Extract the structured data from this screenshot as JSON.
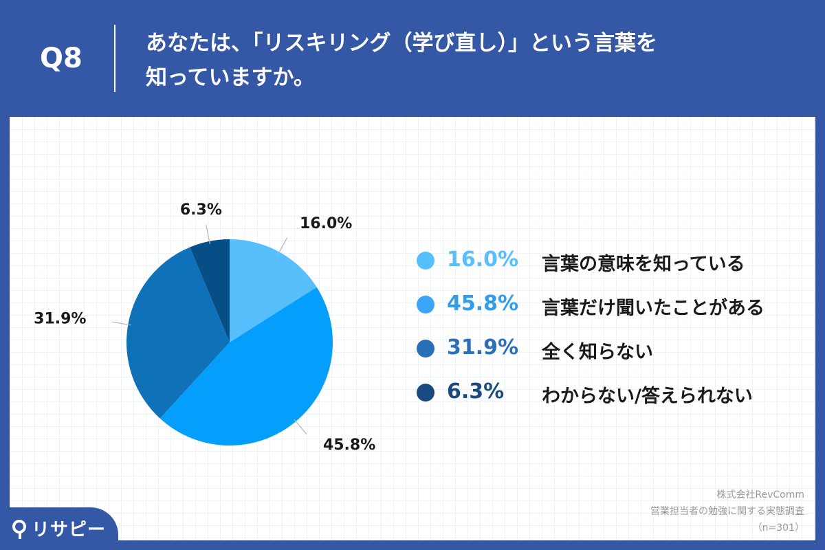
{
  "header": {
    "question_label": "Q8",
    "question_line1": "あなたは、「リスキリング（学び直し）」という言葉を",
    "question_line2": "知っていますか。"
  },
  "chart_data": {
    "type": "pie",
    "categories": [
      "言葉の意味を知っている",
      "言葉だけ聞いたことがある",
      "全く知らない",
      "わからない/答えられない"
    ],
    "values": [
      16.0,
      45.8,
      31.9,
      6.3
    ],
    "labels": [
      "16.0%",
      "45.8%",
      "31.9%",
      "6.3%"
    ],
    "colors": [
      "#56bffc",
      "#049ffc",
      "#0f72b8",
      "#064f86"
    ],
    "legend_pct_colors": [
      "#56bffc",
      "#049ffc",
      "#2a70b8",
      "#1a4a80"
    ],
    "start_angle_deg": 0,
    "direction": "clockwise",
    "legend": "right"
  },
  "source": {
    "company": "株式会社RevComm",
    "survey": "営業担当者の勉強に関する実態調査",
    "sample": "（n=301）"
  },
  "logo": {
    "text": "リサピー"
  },
  "icons": {
    "logo_mark": "map-pin-icon"
  }
}
